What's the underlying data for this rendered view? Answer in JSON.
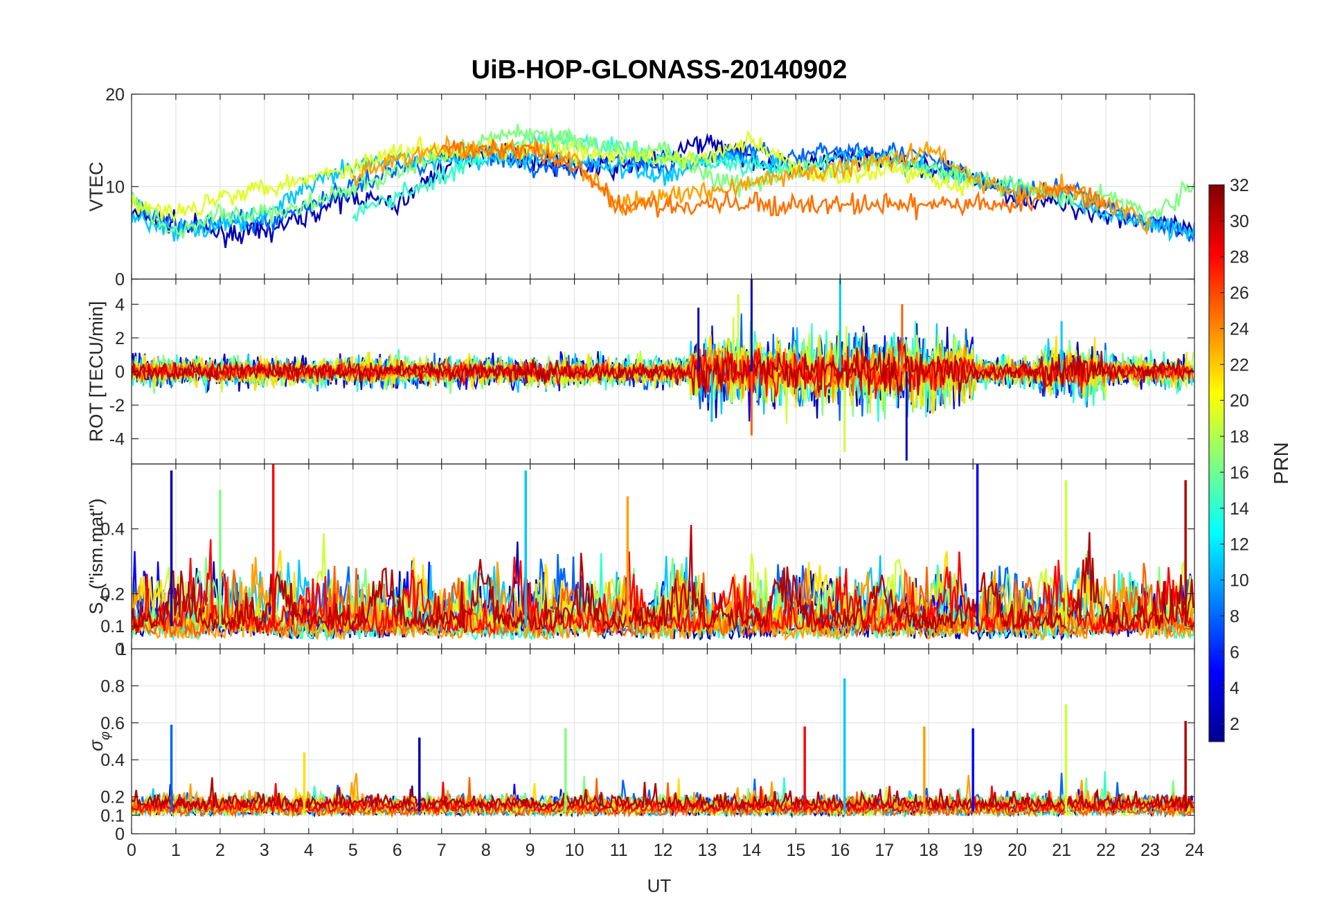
{
  "chart_data": {
    "type": "line",
    "title": "UiB-HOP-GLONASS-20140902",
    "xlabel": "UT",
    "xlim": [
      0,
      24
    ],
    "xticks": [
      "0",
      "1",
      "2",
      "3",
      "4",
      "5",
      "6",
      "7",
      "8",
      "9",
      "10",
      "11",
      "12",
      "13",
      "14",
      "15",
      "16",
      "17",
      "18",
      "19",
      "20",
      "21",
      "22",
      "23",
      "24"
    ],
    "grid": true,
    "colorbar": {
      "label": "PRN",
      "range": [
        1,
        32
      ],
      "ticks": [
        "2",
        "4",
        "6",
        "8",
        "10",
        "12",
        "14",
        "16",
        "18",
        "20",
        "22",
        "24",
        "26",
        "28",
        "30",
        "32"
      ],
      "colormap": "jet"
    },
    "panels": [
      {
        "id": "vtec",
        "ylabel": "VTEC",
        "ylim": [
          0,
          20
        ],
        "yticks": [
          0,
          10,
          20
        ],
        "ytick_labels": [
          "0",
          "10",
          "20"
        ],
        "description_series": [
          {
            "prn": 2,
            "color": "#0000b4",
            "x": [
              0,
              1,
              2,
              3,
              4,
              5,
              6,
              7,
              8,
              9,
              10,
              11,
              12,
              13,
              14,
              15,
              16,
              17,
              18,
              19,
              20,
              21,
              22,
              23,
              24
            ],
            "y": [
              7,
              6,
              5,
              5,
              7,
              9,
              8,
              12,
              14,
              13,
              12,
              12,
              13,
              15,
              13,
              12,
              13,
              13,
              12,
              11,
              9,
              8,
              7,
              6,
              5
            ]
          },
          {
            "prn": 8,
            "color": "#0064ff",
            "x": [
              0,
              1,
              2,
              3,
              4,
              5,
              6,
              7,
              8,
              9,
              10,
              11,
              12,
              13,
              14,
              15,
              16,
              17,
              18,
              19,
              20,
              21,
              22,
              23,
              24
            ],
            "y": [
              8,
              6,
              6,
              6,
              8,
              10,
              12,
              13,
              14,
              12,
              12,
              13,
              12,
              13,
              14,
              13,
              14,
              14,
              13,
              11,
              9,
              10,
              8,
              6,
              5
            ]
          },
          {
            "prn": 12,
            "color": "#00c8ff",
            "x": [
              0,
              1,
              2,
              3,
              4,
              5,
              6,
              7,
              8,
              9,
              10,
              11,
              12,
              13,
              14,
              15,
              16,
              17,
              18,
              19,
              20,
              21,
              22,
              23,
              24
            ],
            "y": [
              7,
              5,
              6,
              7,
              10,
              12,
              13,
              13,
              13,
              13,
              13,
              12,
              11,
              13,
              13,
              12,
              13,
              13,
              12,
              11,
              10,
              9,
              7,
              6,
              5
            ]
          },
          {
            "prn": 14,
            "color": "#33ffcc",
            "x": [
              5,
              6,
              7,
              8,
              9,
              10,
              11,
              12,
              13,
              14,
              15
            ],
            "y": [
              7,
              9,
              11,
              13,
              15,
              15,
              14,
              13,
              13,
              12,
              12
            ]
          },
          {
            "prn": 16,
            "color": "#80ff80",
            "x": [
              0,
              1,
              2,
              3,
              4,
              8,
              9,
              10,
              11,
              12,
              13,
              14,
              15,
              16,
              17,
              18,
              19,
              20,
              21,
              22,
              23,
              24
            ],
            "y": [
              9,
              5,
              7,
              7,
              8,
              15,
              16,
              15,
              14,
              14,
              11,
              10,
              12,
              12,
              13,
              12,
              11,
              10,
              9,
              9,
              7,
              10
            ]
          },
          {
            "prn": 19,
            "color": "#e0ff20",
            "x": [
              0,
              1,
              2,
              3,
              4,
              5,
              6,
              7,
              8,
              9,
              12,
              13,
              14,
              15,
              16,
              17,
              18,
              19
            ],
            "y": [
              8,
              7,
              9,
              10,
              11,
              12,
              14,
              14,
              14,
              14,
              13,
              13,
              15,
              12,
              11,
              12,
              11,
              10
            ]
          },
          {
            "prn": 22,
            "color": "#ffa000",
            "x": [
              5,
              6,
              7,
              8,
              9,
              10,
              11,
              16,
              17,
              18,
              19,
              20,
              21,
              22,
              23
            ],
            "y": [
              11,
              13,
              14,
              14,
              14,
              13,
              8,
              12,
              13,
              14,
              11,
              9,
              10,
              8,
              6
            ]
          },
          {
            "prn": 24,
            "color": "#ff7000",
            "x": [
              7,
              8,
              9,
              10,
              11,
              20,
              21,
              22
            ],
            "y": [
              14,
              14,
              14,
              12,
              8,
              8,
              10,
              8
            ]
          }
        ]
      },
      {
        "id": "rot",
        "ylabel": "ROT [TECU/min]",
        "ylim": [
          -5.5,
          5.5
        ],
        "yticks": [
          -4,
          -2,
          0,
          2,
          4
        ],
        "ytick_labels": [
          "-4",
          "-2",
          "0",
          "2",
          "4"
        ],
        "notable_spikes": [
          {
            "x": 12.8,
            "y": 3.8
          },
          {
            "x": 13.1,
            "y": -3.0
          },
          {
            "x": 13.7,
            "y": 4.6
          },
          {
            "x": 14.0,
            "y": -3.8
          },
          {
            "x": 14.0,
            "y": 5.5
          },
          {
            "x": 16.0,
            "y": 5.5
          },
          {
            "x": 16.1,
            "y": -4.8
          },
          {
            "x": 17.4,
            "y": 4.0
          },
          {
            "x": 17.5,
            "y": -5.3
          },
          {
            "x": 21.0,
            "y": 3.0
          }
        ]
      },
      {
        "id": "s4",
        "ylabel": "S4 (\"ism.mat\")",
        "ylabel_main": "S",
        "ylabel_sub": "4",
        "ylabel_rest": " (\"ism.mat\")",
        "ylim": [
          0.03,
          0.6
        ],
        "yticks": [
          0.1,
          0.2,
          0.4
        ],
        "ytick_labels": [
          "0.1",
          "0.2",
          "0.4"
        ],
        "bottom_overlap_labels": [
          "0",
          "1"
        ],
        "notable_spikes": [
          {
            "x": 0.9,
            "y": 0.58
          },
          {
            "x": 2.0,
            "y": 0.52
          },
          {
            "x": 3.2,
            "y": 0.6
          },
          {
            "x": 8.9,
            "y": 0.58
          },
          {
            "x": 11.2,
            "y": 0.5
          },
          {
            "x": 19.1,
            "y": 0.6
          },
          {
            "x": 21.1,
            "y": 0.55
          },
          {
            "x": 23.8,
            "y": 0.55
          }
        ]
      },
      {
        "id": "sigma_phi",
        "ylabel": "σφ",
        "ylabel_main": "σ",
        "ylabel_sub": "φ",
        "ylim": [
          0,
          1
        ],
        "yticks": [
          0,
          0.1,
          0.2,
          0.4,
          0.6,
          0.8
        ],
        "ytick_labels": [
          "0",
          "0.1",
          "0.2",
          "0.4",
          "0.6",
          "0.8"
        ],
        "notable_spikes": [
          {
            "x": 0.9,
            "y": 0.59
          },
          {
            "x": 3.9,
            "y": 0.44
          },
          {
            "x": 6.5,
            "y": 0.52
          },
          {
            "x": 9.8,
            "y": 0.57
          },
          {
            "x": 15.2,
            "y": 0.58
          },
          {
            "x": 16.1,
            "y": 0.84
          },
          {
            "x": 17.9,
            "y": 0.58
          },
          {
            "x": 19.0,
            "y": 0.57
          },
          {
            "x": 21.1,
            "y": 0.7
          },
          {
            "x": 23.8,
            "y": 0.61
          }
        ]
      }
    ]
  },
  "colors": {
    "prn_palette": [
      "#0000b4",
      "#0000ff",
      "#0064ff",
      "#00c8ff",
      "#33ffcc",
      "#80ff80",
      "#ccff33",
      "#ffdf00",
      "#ffa000",
      "#ff6000",
      "#ff0000",
      "#b40000"
    ],
    "axis": "#262626",
    "grid": "#dfdfdf"
  }
}
